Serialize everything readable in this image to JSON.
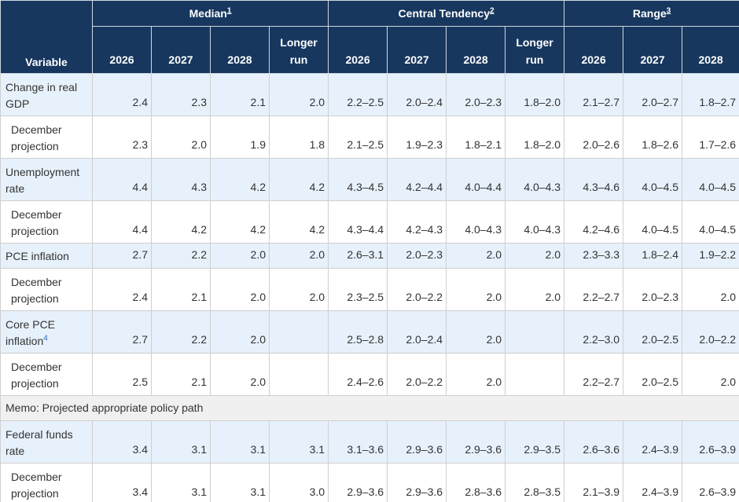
{
  "header": {
    "variable": "Variable",
    "groups": [
      {
        "label": "Median",
        "note": "1"
      },
      {
        "label": "Central Tendency",
        "note": "2"
      },
      {
        "label": "Range",
        "note": "3"
      }
    ],
    "columns": [
      "2026",
      "2027",
      "2028",
      "Longer run",
      "2026",
      "2027",
      "2028",
      "Longer run",
      "2026",
      "2027",
      "2028"
    ]
  },
  "table": {
    "rows": [
      {
        "label": "Change in real GDP",
        "cells": [
          "2.4",
          "2.3",
          "2.1",
          "2.0",
          "2.2–2.5",
          "2.0–2.4",
          "2.0–2.3",
          "1.8–2.0",
          "2.1–2.7",
          "2.0–2.7",
          "1.8–2.7"
        ]
      },
      {
        "label": "December projection",
        "cells": [
          "2.3",
          "2.0",
          "1.9",
          "1.8",
          "2.1–2.5",
          "1.9–2.3",
          "1.8–2.1",
          "1.8–2.0",
          "2.0–2.6",
          "1.8–2.6",
          "1.7–2.6"
        ]
      },
      {
        "label": "Unemployment rate",
        "cells": [
          "4.4",
          "4.3",
          "4.2",
          "4.2",
          "4.3–4.5",
          "4.2–4.4",
          "4.0–4.4",
          "4.0–4.3",
          "4.3–4.6",
          "4.0–4.5",
          "4.0–4.5"
        ]
      },
      {
        "label": "December projection",
        "cells": [
          "4.4",
          "4.2",
          "4.2",
          "4.2",
          "4.3–4.4",
          "4.2–4.3",
          "4.0–4.3",
          "4.0–4.3",
          "4.2–4.6",
          "4.0–4.5",
          "4.0–4.5"
        ]
      },
      {
        "label": "PCE inflation",
        "cells": [
          "2.7",
          "2.2",
          "2.0",
          "2.0",
          "2.6–3.1",
          "2.0–2.3",
          "2.0",
          "2.0",
          "2.3–3.3",
          "1.8–2.4",
          "1.9–2.2"
        ]
      },
      {
        "label": "December projection",
        "cells": [
          "2.4",
          "2.1",
          "2.0",
          "2.0",
          "2.3–2.5",
          "2.0–2.2",
          "2.0",
          "2.0",
          "2.2–2.7",
          "2.0–2.3",
          "2.0"
        ]
      },
      {
        "label": "Core PCE inflation",
        "note": "4",
        "cells": [
          "2.7",
          "2.2",
          "2.0",
          null,
          "2.5–2.8",
          "2.0–2.4",
          "2.0",
          null,
          "2.2–3.0",
          "2.0–2.5",
          "2.0–2.2"
        ]
      },
      {
        "label": "December projection",
        "cells": [
          "2.5",
          "2.1",
          "2.0",
          null,
          "2.4–2.6",
          "2.0–2.2",
          "2.0",
          null,
          "2.2–2.7",
          "2.0–2.5",
          "2.0"
        ]
      },
      {
        "memo": "Memo: Projected appropriate policy path"
      },
      {
        "label": "Federal funds rate",
        "cells": [
          "3.4",
          "3.1",
          "3.1",
          "3.1",
          "3.1–3.6",
          "2.9–3.6",
          "2.9–3.6",
          "2.9–3.5",
          "2.6–3.6",
          "2.4–3.9",
          "2.6–3.9"
        ]
      },
      {
        "label": "December projection",
        "cells": [
          "3.4",
          "3.1",
          "3.1",
          "3.0",
          "2.9–3.6",
          "2.9–3.6",
          "2.8–3.6",
          "2.8–3.5",
          "2.1–3.9",
          "2.4–3.9",
          "2.6–3.9"
        ]
      }
    ]
  }
}
